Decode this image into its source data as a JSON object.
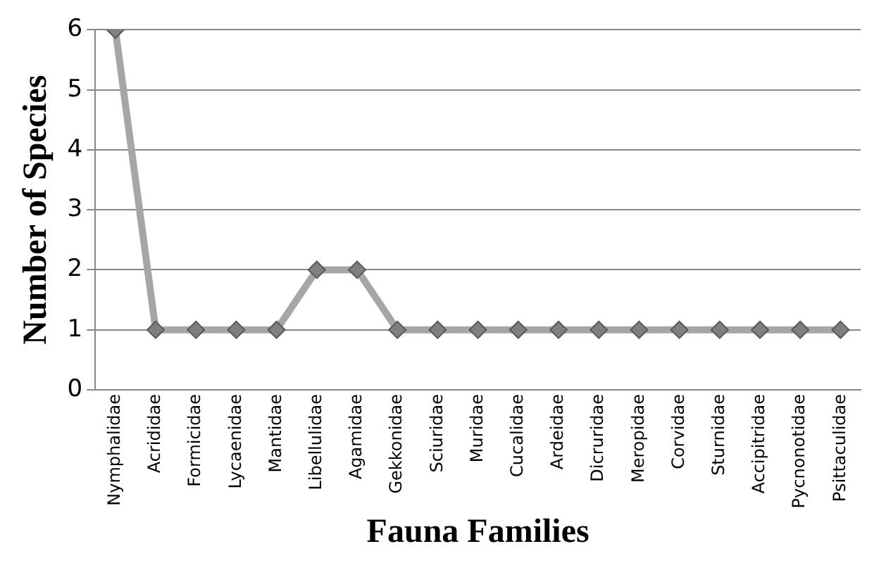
{
  "chart_data": {
    "type": "line",
    "xlabel": "Fauna Families",
    "ylabel": "Number of Species",
    "categories": [
      "Nymphalidae",
      "Acrididae",
      "Formicidae",
      "Lycaenidae",
      "Mantidae",
      "Libellulidae",
      "Agamidae",
      "Gekkonidae",
      "Sciuridae",
      "Muridae",
      "Cucalidae",
      "Ardeidae",
      "Dicruridae",
      "Meropidae",
      "Corvidae",
      "Sturnidae",
      "Accipitridae",
      "Pycnonotidae",
      "Psittaculidae"
    ],
    "series": [
      {
        "color": "#a6a6a6",
        "values": [
          6,
          1,
          1,
          1,
          1,
          2,
          2,
          1,
          1,
          1,
          1,
          1,
          1,
          1,
          1,
          1,
          1,
          1,
          1
        ]
      }
    ],
    "ylim": [
      0,
      6
    ],
    "yticks": [
      0,
      1,
      2,
      3,
      4,
      5,
      6
    ],
    "grid": "y",
    "legend": false,
    "marker": "diamond",
    "line_style": "solid"
  }
}
